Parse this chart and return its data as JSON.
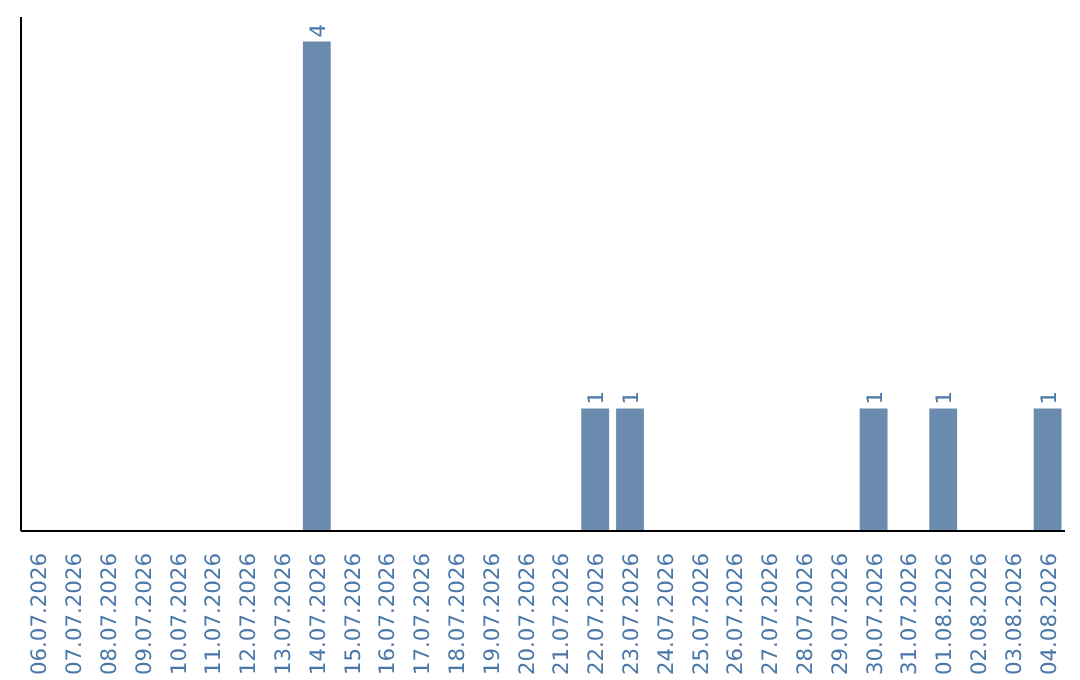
{
  "chart_data": {
    "type": "bar",
    "categories": [
      "06.07.2026",
      "07.07.2026",
      "08.07.2026",
      "09.07.2026",
      "10.07.2026",
      "11.07.2026",
      "12.07.2026",
      "13.07.2026",
      "14.07.2026",
      "15.07.2026",
      "16.07.2026",
      "17.07.2026",
      "18.07.2026",
      "19.07.2026",
      "20.07.2026",
      "21.07.2026",
      "22.07.2026",
      "23.07.2026",
      "24.07.2026",
      "25.07.2026",
      "26.07.2026",
      "27.07.2026",
      "28.07.2026",
      "29.07.2026",
      "30.07.2026",
      "31.07.2026",
      "01.08.2026",
      "02.08.2026",
      "03.08.2026",
      "04.08.2026"
    ],
    "values": [
      0,
      0,
      0,
      0,
      0,
      0,
      0,
      0,
      4,
      0,
      0,
      0,
      0,
      0,
      0,
      0,
      1,
      1,
      0,
      0,
      0,
      0,
      0,
      0,
      1,
      0,
      1,
      0,
      0,
      1
    ],
    "value_labels": [
      null,
      null,
      null,
      null,
      null,
      null,
      null,
      null,
      "4",
      null,
      null,
      null,
      null,
      null,
      null,
      null,
      "1",
      "1",
      null,
      null,
      null,
      null,
      null,
      null,
      "1",
      null,
      "1",
      null,
      null,
      "1"
    ],
    "color": "#6b8cae",
    "ylim": [
      0,
      4.2
    ],
    "tick_labels": "x"
  }
}
